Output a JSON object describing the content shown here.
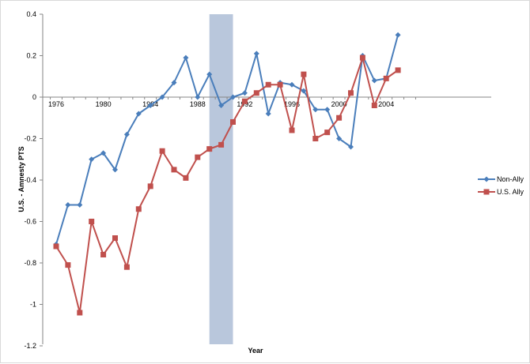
{
  "chart_data": {
    "type": "line",
    "title": "",
    "xlabel": "Year",
    "ylabel": "U.S. - Amnesty PTS",
    "xlim": [
      1975,
      2006
    ],
    "ylim": [
      -1.2,
      0.4
    ],
    "x_ticks": [
      1976,
      1980,
      1984,
      1988,
      1992,
      1996,
      2000,
      2004
    ],
    "y_ticks": [
      0.4,
      0.2,
      0,
      -0.2,
      -0.4,
      -0.6,
      -0.8,
      -1,
      -1.2
    ],
    "x_tick_labels": [
      "1976",
      "1980",
      "1984",
      "1988",
      "1992",
      "1996",
      "2000",
      "2004"
    ],
    "y_tick_labels": [
      "0.4",
      "0.2",
      "0",
      "-0.2",
      "-0.4",
      "-0.6",
      "-0.8",
      "-1",
      "-1.2"
    ],
    "grid": false,
    "legend_position": "right",
    "shaded_region": {
      "x_start": 1989,
      "x_end": 1991,
      "color": "#b9c7dc"
    },
    "series": [
      {
        "name": "Non-Ally",
        "color": "#4a7ebb",
        "marker": "diamond",
        "x": [
          1976,
          1977,
          1978,
          1979,
          1980,
          1981,
          1982,
          1983,
          1984,
          1985,
          1986,
          1987,
          1988,
          1989,
          1990,
          1991,
          1992,
          1993,
          1994,
          1995,
          1996,
          1997,
          1998,
          1999,
          2000,
          2001,
          2002,
          2003,
          2004,
          2005
        ],
        "values": [
          -0.71,
          -0.52,
          -0.52,
          -0.3,
          -0.27,
          -0.35,
          -0.18,
          -0.08,
          -0.04,
          0.0,
          0.07,
          0.19,
          0.0,
          0.11,
          -0.04,
          0.0,
          0.02,
          0.21,
          -0.08,
          0.07,
          0.06,
          0.03,
          -0.06,
          -0.06,
          -0.2,
          -0.24,
          0.2,
          0.08,
          0.09,
          0.3
        ]
      },
      {
        "name": "U.S. Ally",
        "color": "#c0504d",
        "marker": "square",
        "x": [
          1976,
          1977,
          1978,
          1979,
          1980,
          1981,
          1982,
          1983,
          1984,
          1985,
          1986,
          1987,
          1988,
          1989,
          1990,
          1991,
          1992,
          1993,
          1994,
          1995,
          1996,
          1997,
          1998,
          1999,
          2000,
          2001,
          2002,
          2003,
          2004,
          2005
        ],
        "values": [
          -0.72,
          -0.81,
          -1.04,
          -0.6,
          -0.76,
          -0.68,
          -0.82,
          -0.54,
          -0.43,
          -0.26,
          -0.35,
          -0.39,
          -0.29,
          -0.25,
          -0.23,
          -0.12,
          -0.02,
          0.02,
          0.06,
          0.06,
          -0.16,
          0.11,
          -0.2,
          -0.17,
          -0.1,
          0.02,
          0.19,
          -0.04,
          0.09,
          0.13
        ]
      }
    ]
  }
}
